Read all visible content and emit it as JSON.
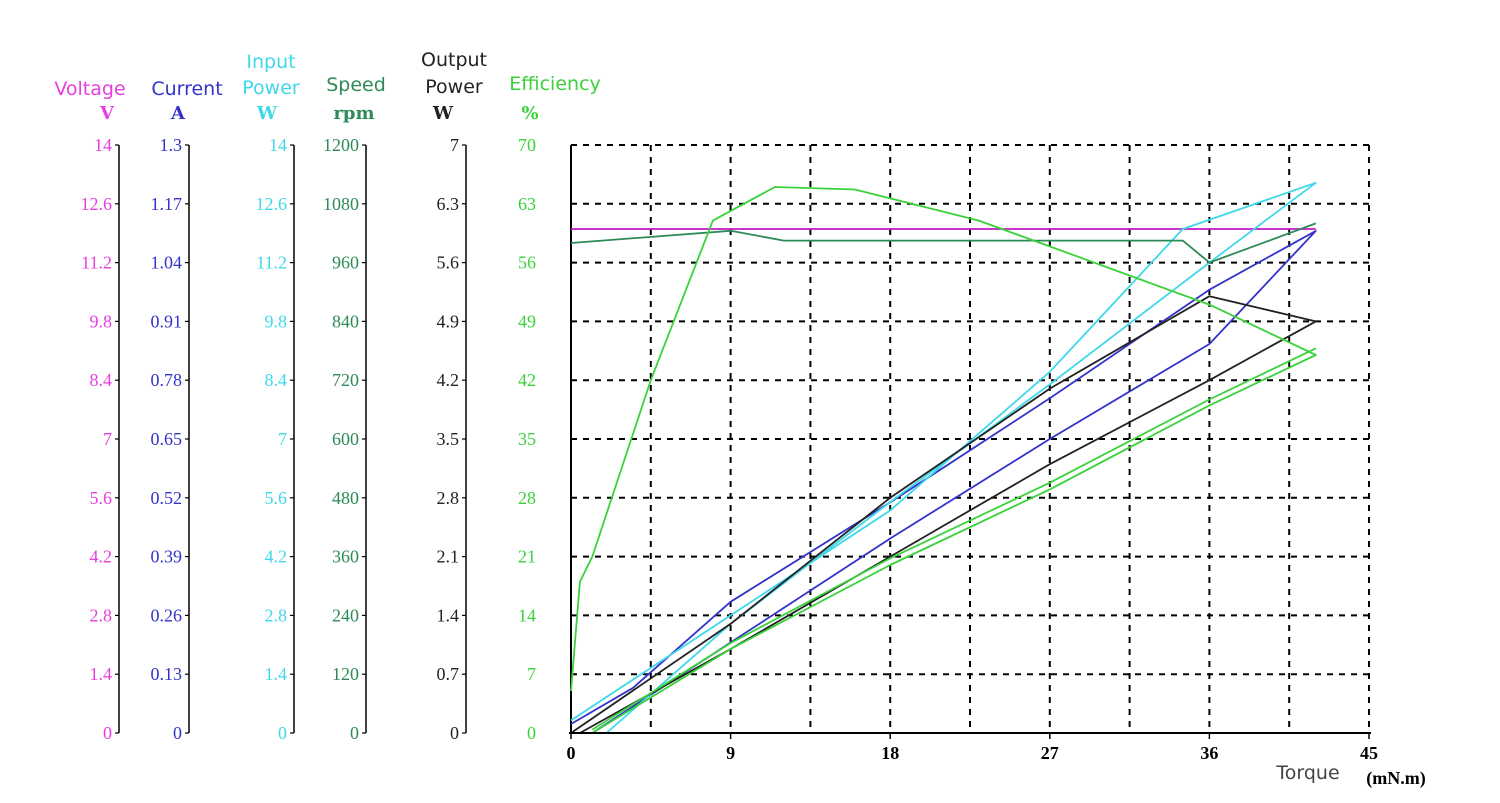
{
  "chart_data": {
    "type": "line",
    "x_axis": {
      "ticks": [
        "0",
        "9",
        "18",
        "27",
        "36",
        "45"
      ],
      "range": [
        0,
        45
      ],
      "label": "Torque",
      "unit": "(mN.m)"
    },
    "grid": true,
    "y_axes": [
      {
        "key": "voltage",
        "label": "Voltage",
        "unit": "V",
        "color": "#e83ee0",
        "range": [
          0,
          14
        ],
        "ticks": [
          "14",
          "12.6",
          "11.2",
          "9.8",
          "8.4",
          "7",
          "5.6",
          "4.2",
          "2.8",
          "1.4",
          "0"
        ]
      },
      {
        "key": "current",
        "label": "Current",
        "unit": "A",
        "color": "#3333cc",
        "range": [
          0,
          1.3
        ],
        "ticks": [
          "1.3",
          "1.17",
          "1.04",
          "0.91",
          "0.78",
          "0.65",
          "0.52",
          "0.39",
          "0.26",
          "0.13",
          "0"
        ]
      },
      {
        "key": "input_power",
        "label": "Input Power",
        "unit": "W",
        "color": "#3fd8ea",
        "range": [
          0,
          14
        ],
        "ticks": [
          "14",
          "12.6",
          "11.2",
          "9.8",
          "8.4",
          "7",
          "5.6",
          "4.2",
          "2.8",
          "1.4",
          "0"
        ]
      },
      {
        "key": "speed",
        "label": "Speed",
        "unit": "rpm",
        "color": "#2e8a57",
        "range": [
          0,
          1200
        ],
        "ticks": [
          "1200",
          "1080",
          "960",
          "840",
          "720",
          "600",
          "480",
          "360",
          "240",
          "120",
          "0"
        ]
      },
      {
        "key": "output_power",
        "label": "Output Power",
        "unit": "W",
        "color": "#222222",
        "range": [
          0,
          7
        ],
        "ticks": [
          "7",
          "6.3",
          "5.6",
          "4.9",
          "4.2",
          "3.5",
          "2.8",
          "2.1",
          "1.4",
          "0.7",
          "0"
        ]
      },
      {
        "key": "efficiency",
        "label": "Efficiency",
        "unit": "%",
        "color": "#3ad23a",
        "range": [
          0,
          70
        ],
        "ticks": [
          "70",
          "63",
          "56",
          "49",
          "42",
          "35",
          "28",
          "21",
          "14",
          "7",
          "0"
        ]
      }
    ],
    "series": [
      {
        "axis": "voltage",
        "color": "#c018c0",
        "x": [
          0,
          42
        ],
        "y": [
          12,
          12
        ]
      },
      {
        "axis": "current",
        "color": "#3333cc",
        "x": [
          0,
          3.5,
          9,
          18,
          27,
          36,
          42,
          36,
          27,
          18,
          9,
          1.2
        ],
        "y": [
          0.02,
          0.1,
          0.29,
          0.51,
          0.74,
          0.98,
          1.11,
          0.86,
          0.65,
          0.43,
          0.2,
          0
        ]
      },
      {
        "axis": "input_power",
        "color": "#3fd8ea",
        "x": [
          0,
          9,
          18,
          27,
          34.5,
          42,
          36,
          27,
          18,
          9,
          2
        ],
        "y": [
          0.3,
          2.8,
          5.3,
          8.6,
          12,
          13.1,
          11.2,
          8.3,
          5.5,
          2.6,
          0
        ]
      },
      {
        "axis": "speed",
        "color": "#2e8a57",
        "x": [
          0,
          9,
          12,
          18,
          27,
          34.5,
          36,
          42
        ],
        "y": [
          1000,
          1025,
          1005,
          1005,
          1005,
          1005,
          960,
          1040
        ]
      },
      {
        "axis": "output_power",
        "color": "#222222",
        "x": [
          0,
          9,
          18,
          27,
          36,
          42,
          36,
          27,
          18,
          9,
          0.5
        ],
        "y": [
          0,
          1.3,
          2.8,
          4.1,
          5.2,
          4.9,
          4.2,
          3.2,
          2.1,
          1.0,
          0
        ]
      },
      {
        "axis": "efficiency",
        "color": "#3ad23a",
        "x": [
          0,
          0.5,
          1.2,
          4.5,
          8,
          11.5,
          16,
          23,
          36,
          42,
          36,
          27,
          18,
          9,
          1.2
        ],
        "y": [
          5,
          18,
          21,
          42,
          61,
          65,
          64.7,
          61,
          51,
          45,
          39,
          29,
          20,
          10,
          0
        ]
      },
      {
        "axis": "efficiency",
        "color": "#3ad23a",
        "x": [
          42,
          36,
          27,
          18,
          9,
          1.2
        ],
        "y": [
          45.8,
          39.7,
          29.8,
          20.8,
          10.7,
          0.4
        ]
      }
    ]
  }
}
